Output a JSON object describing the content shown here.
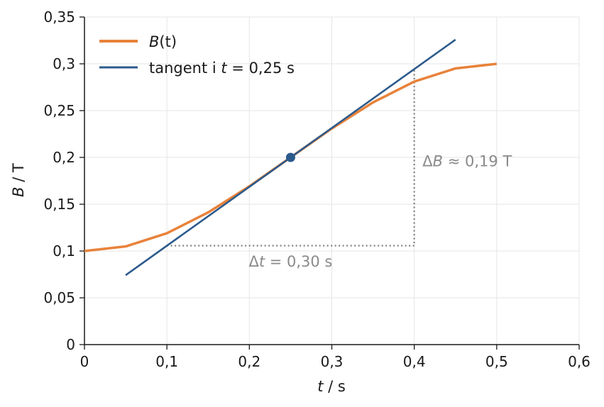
{
  "chart_data": {
    "type": "line",
    "xlabel_var": "t",
    "xlabel_unit": " / s",
    "ylabel_var": "B",
    "ylabel_unit": " / T",
    "xlim": [
      0,
      0.6
    ],
    "ylim": [
      0,
      0.35
    ],
    "x_ticks": [
      0,
      0.1,
      0.2,
      0.3,
      0.4,
      0.5,
      0.6
    ],
    "x_tick_labels": [
      "0",
      "0,1",
      "0,2",
      "0,3",
      "0,4",
      "0,5",
      "0,6"
    ],
    "y_ticks": [
      0,
      0.05,
      0.1,
      0.15,
      0.2,
      0.25,
      0.3,
      0.35
    ],
    "y_tick_labels": [
      "0",
      "0,05",
      "0,1",
      "0,15",
      "0,2",
      "0,25",
      "0,3",
      "0,35"
    ],
    "grid": true,
    "legend_position": "top-left",
    "series": [
      {
        "name": "B(t)",
        "legend_var": "B",
        "legend_rest": "(t)",
        "color": "#e8823a",
        "x": [
          0,
          0.05,
          0.1,
          0.15,
          0.2,
          0.25,
          0.3,
          0.35,
          0.4,
          0.45,
          0.5
        ],
        "y": [
          0.1,
          0.1049,
          0.119,
          0.1412,
          0.1691,
          0.2,
          0.2309,
          0.2588,
          0.281,
          0.2951,
          0.3
        ]
      },
      {
        "name": "tangent i t = 0,25 s",
        "legend_before": "tangent i ",
        "legend_var": "t",
        "legend_after": " = 0,25 s",
        "color": "#2b5a8c",
        "x": [
          0.05,
          0.45
        ],
        "y": [
          0.0742,
          0.3258
        ]
      }
    ],
    "point": {
      "x": 0.25,
      "y": 0.2,
      "color": "#2b5a8c"
    },
    "triangle": {
      "x0": 0.1,
      "x1": 0.4,
      "y0": 0.1057,
      "y1": 0.2943,
      "color": "#808080"
    },
    "annotations": {
      "delta_t": {
        "prefix": "Δ",
        "var": "t",
        "rest": " = 0,30 s",
        "x": 0.25,
        "y": 0.0887
      },
      "delta_b": {
        "prefix": "Δ",
        "var": "B",
        "rest": " ≈ 0,19 T",
        "x": 0.41,
        "y": 0.1957
      }
    }
  }
}
